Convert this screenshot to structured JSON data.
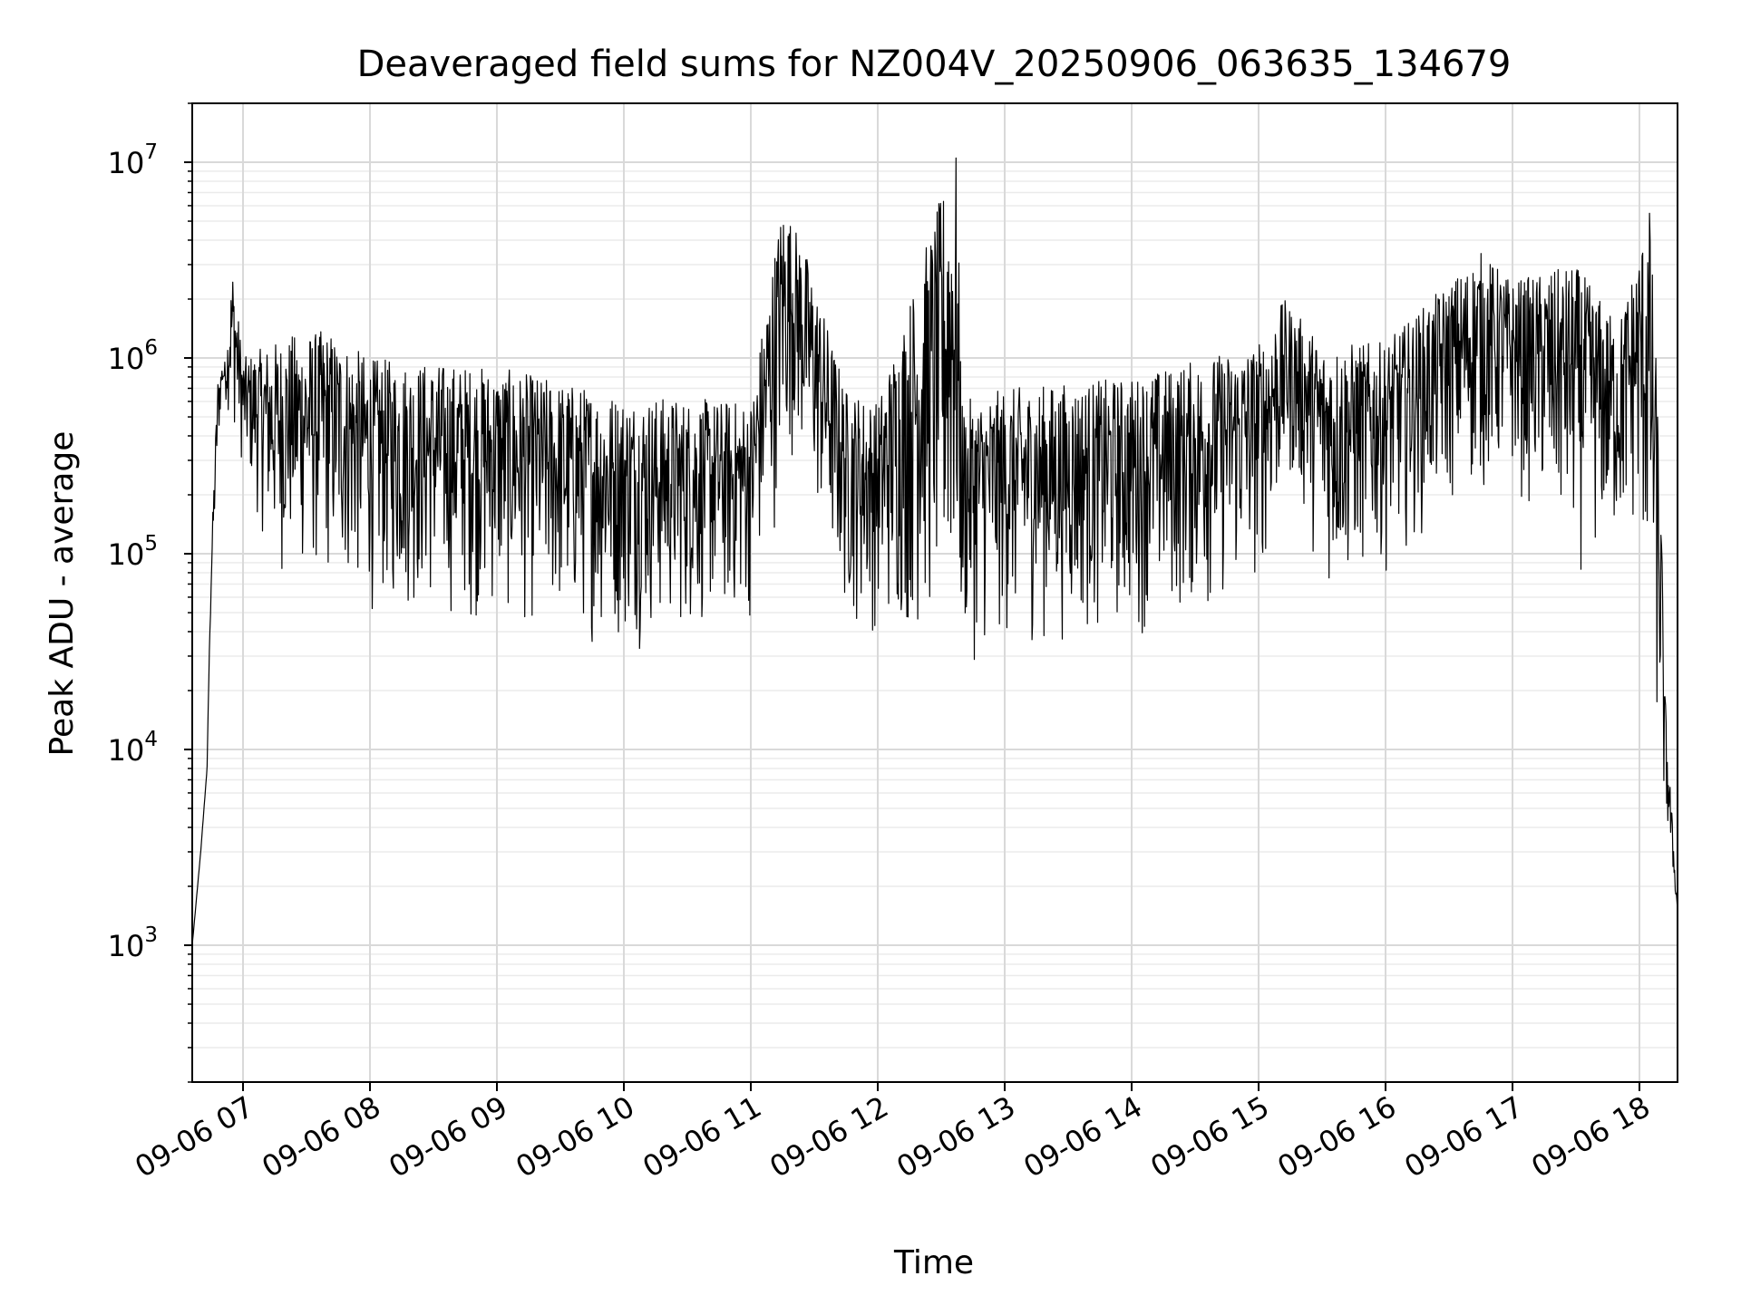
{
  "chart_data": {
    "type": "line",
    "title": "Deaveraged field sums for NZ004V_20250906_063635_134679",
    "xlabel": "Time",
    "ylabel": "Peak ADU - average",
    "yscale": "log",
    "ylim": [
      200,
      20000000
    ],
    "xlim": [
      "2025-09-06 06:36",
      "2025-09-06 18:18"
    ],
    "grid": true,
    "line_color": "#000000",
    "x_ticks": [
      {
        "x": "2025-09-06 07:00",
        "label": "09-06 07"
      },
      {
        "x": "2025-09-06 08:00",
        "label": "09-06 08"
      },
      {
        "x": "2025-09-06 09:00",
        "label": "09-06 09"
      },
      {
        "x": "2025-09-06 10:00",
        "label": "09-06 10"
      },
      {
        "x": "2025-09-06 11:00",
        "label": "09-06 11"
      },
      {
        "x": "2025-09-06 12:00",
        "label": "09-06 12"
      },
      {
        "x": "2025-09-06 13:00",
        "label": "09-06 13"
      },
      {
        "x": "2025-09-06 14:00",
        "label": "09-06 14"
      },
      {
        "x": "2025-09-06 15:00",
        "label": "09-06 15"
      },
      {
        "x": "2025-09-06 16:00",
        "label": "09-06 16"
      },
      {
        "x": "2025-09-06 17:00",
        "label": "09-06 17"
      },
      {
        "x": "2025-09-06 18:00",
        "label": "09-06 18"
      }
    ],
    "y_ticks": [
      {
        "value": 1000,
        "base": "10",
        "exp": "3"
      },
      {
        "value": 10000,
        "base": "10",
        "exp": "4"
      },
      {
        "value": 100000,
        "base": "10",
        "exp": "5"
      },
      {
        "value": 1000000,
        "base": "10",
        "exp": "6"
      },
      {
        "value": 10000000,
        "base": "10",
        "exp": "7"
      }
    ],
    "series": [
      {
        "envelope_upper": [
          [
            "2025-09-06 06:36",
            1000
          ],
          [
            "2025-09-06 06:40",
            3000
          ],
          [
            "2025-09-06 06:43",
            8000
          ],
          [
            "2025-09-06 06:45",
            100000
          ],
          [
            "2025-09-06 06:48",
            800000
          ],
          [
            "2025-09-06 06:52",
            1000000
          ],
          [
            "2025-09-06 06:55",
            3000000
          ],
          [
            "2025-09-06 07:00",
            1000000
          ],
          [
            "2025-09-06 07:20",
            1300000
          ],
          [
            "2025-09-06 07:40",
            1400000
          ],
          [
            "2025-09-06 08:00",
            1000000
          ],
          [
            "2025-09-06 09:00",
            900000
          ],
          [
            "2025-09-06 10:00",
            650000
          ],
          [
            "2025-09-06 11:00",
            600000
          ],
          [
            "2025-09-06 11:15",
            6500000
          ],
          [
            "2025-09-06 11:25",
            3800000
          ],
          [
            "2025-09-06 11:45",
            700000
          ],
          [
            "2025-09-06 12:00",
            600000
          ],
          [
            "2025-09-06 12:37",
            12000000
          ],
          [
            "2025-09-06 12:40",
            600000
          ],
          [
            "2025-09-06 13:00",
            700000
          ],
          [
            "2025-09-06 14:00",
            800000
          ],
          [
            "2025-09-06 15:00",
            1200000
          ],
          [
            "2025-09-06 15:12",
            2000000
          ],
          [
            "2025-09-06 15:30",
            1200000
          ],
          [
            "2025-09-06 16:00",
            1200000
          ],
          [
            "2025-09-06 16:45",
            3500000
          ],
          [
            "2025-09-06 17:00",
            2500000
          ],
          [
            "2025-09-06 17:30",
            3000000
          ],
          [
            "2025-09-06 17:50",
            1500000
          ],
          [
            "2025-09-06 18:05",
            6000000
          ],
          [
            "2025-09-06 18:10",
            250000
          ],
          [
            "2025-09-06 18:12",
            20000
          ],
          [
            "2025-09-06 18:18",
            1500
          ]
        ],
        "envelope_lower": [
          [
            "2025-09-06 06:36",
            1000
          ],
          [
            "2025-09-06 06:45",
            50000
          ],
          [
            "2025-09-06 06:50",
            700000
          ],
          [
            "2025-09-06 07:00",
            250000
          ],
          [
            "2025-09-06 07:15",
            70000
          ],
          [
            "2025-09-06 07:40",
            60000
          ],
          [
            "2025-09-06 08:00",
            45000
          ],
          [
            "2025-09-06 09:00",
            40000
          ],
          [
            "2025-09-06 10:00",
            30000
          ],
          [
            "2025-09-06 11:00",
            40000
          ],
          [
            "2025-09-06 11:20",
            300000
          ],
          [
            "2025-09-06 11:45",
            40000
          ],
          [
            "2025-09-06 12:00",
            35000
          ],
          [
            "2025-09-06 12:40",
            25000
          ],
          [
            "2025-09-06 13:00",
            30000
          ],
          [
            "2025-09-06 14:00",
            35000
          ],
          [
            "2025-09-06 14:40",
            45000
          ],
          [
            "2025-09-06 15:00",
            60000
          ],
          [
            "2025-09-06 15:15",
            200000
          ],
          [
            "2025-09-06 15:35",
            50000
          ],
          [
            "2025-09-06 16:00",
            80000
          ],
          [
            "2025-09-06 16:30",
            150000
          ],
          [
            "2025-09-06 17:00",
            200000
          ],
          [
            "2025-09-06 17:30",
            70000
          ],
          [
            "2025-09-06 18:00",
            100000
          ],
          [
            "2025-09-06 18:10",
            5000
          ],
          [
            "2025-09-06 18:18",
            1500
          ]
        ]
      }
    ]
  }
}
